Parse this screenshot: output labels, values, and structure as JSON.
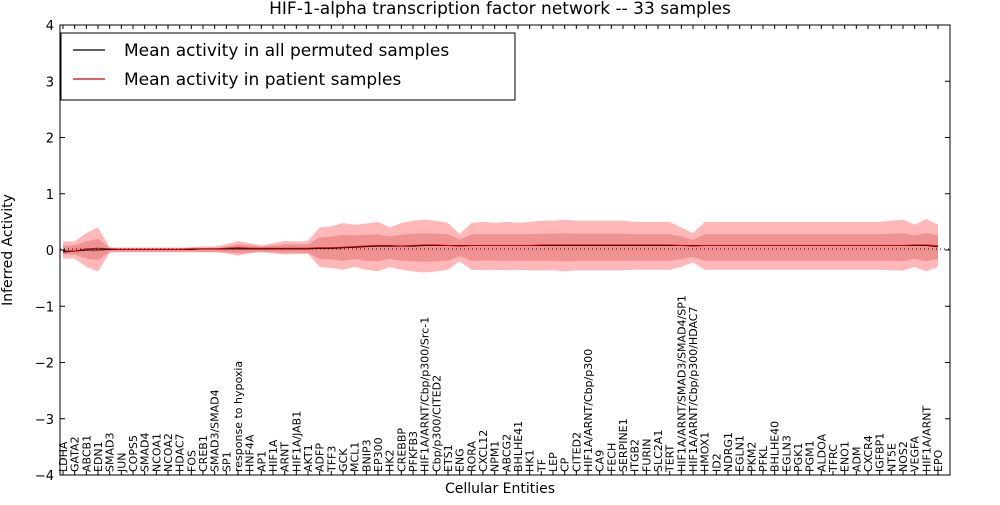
{
  "chart_data": {
    "type": "line",
    "title": "HIF-1-alpha transcription factor network -- 33 samples",
    "xlabel": "Cellular Entities",
    "ylabel": "Inferred Activity",
    "ylim": [
      -4,
      4
    ],
    "yticks": [
      4,
      3,
      2,
      1,
      0,
      -1,
      -2,
      -3,
      -4
    ],
    "ytick_labels": [
      "4",
      "3",
      "2",
      "1",
      "0",
      "−1",
      "−2",
      "−3",
      "−4"
    ],
    "legend_position": "top-left",
    "categories": [
      "LDHA",
      "GATA2",
      "ABCB1",
      "EDN1",
      "SMAD3",
      "JUN",
      "COPS5",
      "SMAD4",
      "NCOA1",
      "NCOA2",
      "HDAC7",
      "FOS",
      "CREB1",
      "SMAD3/SMAD4",
      "SP1",
      "response to hypoxia",
      "HNF4A",
      "AP1",
      "HIF1A",
      "ARNT",
      "HIF1A/JAB1",
      "AKT1",
      "ADFP",
      "TFF3",
      "GCK",
      "MCL1",
      "BNIP3",
      "EP300",
      "HK2",
      "CREBBP",
      "PFKFB3",
      "HIF1A/ARNT/Cbp/p300/Src-1",
      "Cbp/p300/CITED2",
      "ETS1",
      "ENG",
      "RORA",
      "CXCL12",
      "NPM1",
      "ABCG2",
      "BHLHE41",
      "HK1",
      "TF",
      "LEP",
      "CP",
      "CITED2",
      "HIF1A/ARNT/Cbp/p300",
      "CA9",
      "FECH",
      "SERPINE1",
      "ITGB2",
      "FURIN",
      "SLC2A1",
      "TERT",
      "HIF1A/ARNT/SMAD3/SMAD4/SP1",
      "HIF1A/ARNT/Cbp/p300/HDAC7",
      "HMOX1",
      "ID2",
      "NDRG1",
      "EGLN1",
      "PKM2",
      "PFKL",
      "BHLHE40",
      "EGLN3",
      "PGK1",
      "PGM1",
      "ALDOA",
      "TFRC",
      "ENO1",
      "ADM",
      "CXCR4",
      "IGFBP1",
      "NT5E",
      "NOS2",
      "VEGFA",
      "HIF1A/ARNT",
      "EPO"
    ],
    "series": [
      {
        "name": "Mean activity in all permuted samples",
        "color": "#000000",
        "values": [
          -0.02,
          -0.02,
          0.0,
          0.0,
          0.01,
          0.01,
          0.01,
          0.01,
          0.01,
          0.01,
          0.01,
          0.01,
          0.02,
          0.02,
          0.02,
          0.02,
          0.02,
          0.02,
          0.02,
          0.02,
          0.02,
          0.02,
          0.03,
          0.03,
          0.04,
          0.05,
          0.06,
          0.07,
          0.07,
          0.07,
          0.07,
          0.08,
          0.08,
          0.08,
          0.08,
          0.08,
          0.08,
          0.08,
          0.08,
          0.08,
          0.08,
          0.08,
          0.08,
          0.08,
          0.08,
          0.08,
          0.08,
          0.08,
          0.08,
          0.08,
          0.08,
          0.08,
          0.08,
          0.08,
          0.08,
          0.08,
          0.08,
          0.08,
          0.08,
          0.08,
          0.08,
          0.08,
          0.08,
          0.08,
          0.08,
          0.08,
          0.08,
          0.08,
          0.08,
          0.08,
          0.08,
          0.08,
          0.08,
          0.08,
          0.08,
          0.06
        ]
      },
      {
        "name": "Mean activity in patient samples",
        "color": "#cc0000",
        "values": [
          -0.04,
          -0.02,
          0.02,
          0.03,
          0.02,
          0.01,
          0.01,
          0.01,
          0.01,
          0.01,
          0.01,
          0.02,
          0.02,
          0.02,
          0.03,
          0.04,
          0.03,
          0.03,
          0.03,
          0.03,
          0.03,
          0.03,
          0.04,
          0.04,
          0.05,
          0.06,
          0.07,
          0.08,
          0.08,
          0.07,
          0.08,
          0.09,
          0.09,
          0.08,
          0.07,
          0.08,
          0.08,
          0.08,
          0.08,
          0.08,
          0.08,
          0.09,
          0.09,
          0.09,
          0.09,
          0.09,
          0.09,
          0.09,
          0.09,
          0.09,
          0.09,
          0.09,
          0.09,
          0.08,
          0.07,
          0.08,
          0.08,
          0.08,
          0.08,
          0.08,
          0.08,
          0.08,
          0.08,
          0.08,
          0.08,
          0.08,
          0.08,
          0.08,
          0.08,
          0.08,
          0.08,
          0.08,
          0.08,
          0.09,
          0.09,
          0.07
        ]
      }
    ],
    "band_outer": {
      "upper": [
        0.15,
        0.15,
        0.3,
        0.4,
        0.05,
        0.04,
        0.04,
        0.04,
        0.04,
        0.04,
        0.04,
        0.05,
        0.06,
        0.06,
        0.1,
        0.16,
        0.12,
        0.08,
        0.12,
        0.16,
        0.15,
        0.16,
        0.4,
        0.42,
        0.48,
        0.45,
        0.47,
        0.5,
        0.4,
        0.48,
        0.52,
        0.54,
        0.52,
        0.48,
        0.28,
        0.48,
        0.5,
        0.48,
        0.5,
        0.48,
        0.5,
        0.52,
        0.52,
        0.54,
        0.52,
        0.52,
        0.52,
        0.52,
        0.52,
        0.5,
        0.5,
        0.5,
        0.5,
        0.4,
        0.3,
        0.5,
        0.5,
        0.5,
        0.5,
        0.5,
        0.5,
        0.5,
        0.5,
        0.5,
        0.5,
        0.5,
        0.5,
        0.5,
        0.5,
        0.5,
        0.5,
        0.52,
        0.54,
        0.45,
        0.55,
        0.45
      ],
      "lower": [
        -0.15,
        -0.15,
        -0.3,
        -0.38,
        -0.05,
        -0.04,
        -0.04,
        -0.04,
        -0.04,
        -0.04,
        -0.04,
        -0.04,
        -0.04,
        -0.04,
        -0.06,
        -0.1,
        -0.06,
        -0.04,
        -0.06,
        -0.08,
        -0.07,
        -0.07,
        -0.3,
        -0.32,
        -0.35,
        -0.3,
        -0.35,
        -0.38,
        -0.3,
        -0.35,
        -0.38,
        -0.4,
        -0.38,
        -0.35,
        -0.2,
        -0.35,
        -0.36,
        -0.35,
        -0.36,
        -0.35,
        -0.36,
        -0.36,
        -0.36,
        -0.38,
        -0.36,
        -0.36,
        -0.36,
        -0.36,
        -0.36,
        -0.35,
        -0.35,
        -0.35,
        -0.35,
        -0.3,
        -0.22,
        -0.35,
        -0.35,
        -0.35,
        -0.35,
        -0.35,
        -0.35,
        -0.35,
        -0.35,
        -0.35,
        -0.35,
        -0.35,
        -0.35,
        -0.35,
        -0.35,
        -0.35,
        -0.35,
        -0.36,
        -0.37,
        -0.3,
        -0.38,
        -0.3
      ]
    },
    "band_inner": {
      "upper": [
        0.08,
        0.08,
        0.15,
        0.2,
        0.03,
        0.03,
        0.03,
        0.03,
        0.03,
        0.03,
        0.03,
        0.04,
        0.04,
        0.04,
        0.06,
        0.1,
        0.08,
        0.06,
        0.08,
        0.1,
        0.1,
        0.1,
        0.22,
        0.24,
        0.27,
        0.26,
        0.27,
        0.28,
        0.24,
        0.27,
        0.29,
        0.3,
        0.29,
        0.28,
        0.18,
        0.28,
        0.28,
        0.28,
        0.28,
        0.28,
        0.28,
        0.29,
        0.29,
        0.3,
        0.29,
        0.29,
        0.29,
        0.29,
        0.29,
        0.28,
        0.28,
        0.28,
        0.28,
        0.24,
        0.18,
        0.28,
        0.28,
        0.28,
        0.28,
        0.28,
        0.28,
        0.28,
        0.28,
        0.28,
        0.28,
        0.28,
        0.28,
        0.28,
        0.28,
        0.28,
        0.28,
        0.29,
        0.3,
        0.26,
        0.3,
        0.26
      ],
      "lower": [
        -0.08,
        -0.08,
        -0.15,
        -0.18,
        -0.03,
        -0.03,
        -0.03,
        -0.03,
        -0.03,
        -0.03,
        -0.03,
        -0.03,
        -0.03,
        -0.03,
        -0.04,
        -0.06,
        -0.04,
        -0.03,
        -0.04,
        -0.05,
        -0.05,
        -0.05,
        -0.16,
        -0.17,
        -0.19,
        -0.16,
        -0.19,
        -0.2,
        -0.16,
        -0.19,
        -0.2,
        -0.21,
        -0.2,
        -0.19,
        -0.11,
        -0.19,
        -0.19,
        -0.19,
        -0.19,
        -0.19,
        -0.19,
        -0.19,
        -0.19,
        -0.2,
        -0.19,
        -0.19,
        -0.19,
        -0.19,
        -0.19,
        -0.19,
        -0.19,
        -0.19,
        -0.19,
        -0.16,
        -0.12,
        -0.19,
        -0.19,
        -0.19,
        -0.19,
        -0.19,
        -0.19,
        -0.19,
        -0.19,
        -0.19,
        -0.19,
        -0.19,
        -0.19,
        -0.19,
        -0.19,
        -0.19,
        -0.19,
        -0.19,
        -0.2,
        -0.16,
        -0.2,
        -0.16
      ]
    },
    "band_color": "#ff9999"
  }
}
